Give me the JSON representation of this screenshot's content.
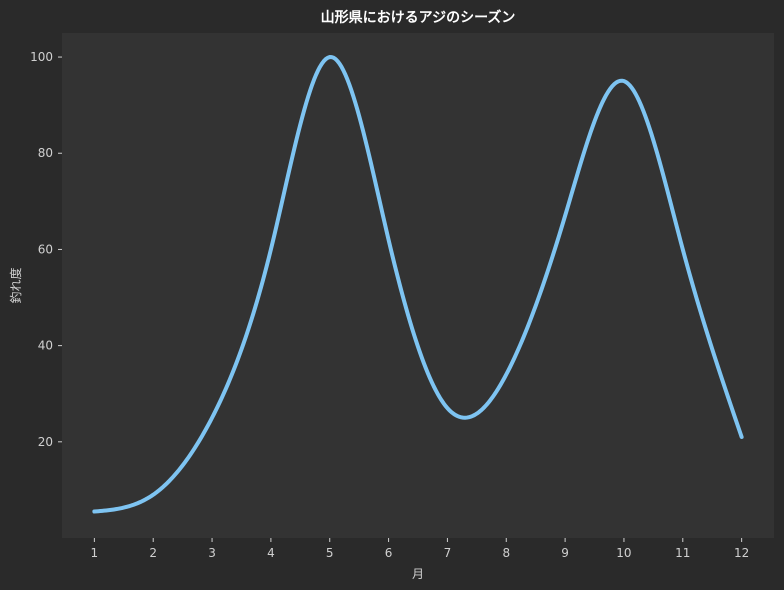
{
  "chart_data": {
    "type": "line",
    "title": "山形県におけるアジのシーズン",
    "xlabel": "月",
    "ylabel": "釣れ度",
    "xlim": [
      0.45,
      12.55
    ],
    "ylim": [
      0,
      105
    ],
    "xticks": [
      1,
      2,
      3,
      4,
      5,
      6,
      7,
      8,
      9,
      10,
      11,
      12
    ],
    "yticks": [
      20,
      40,
      60,
      80,
      100
    ],
    "grid": false,
    "series": [
      {
        "x": [
          1,
          2,
          3,
          4,
          5,
          6,
          7,
          8,
          9,
          10,
          11,
          12
        ],
        "values": [
          5.5,
          9,
          25,
          60,
          100,
          62,
          27,
          34,
          67,
          95,
          60,
          21
        ]
      }
    ],
    "colors": {
      "background": "#2a2a2a",
      "plot_background": "#333333",
      "line": "#7ec4f2",
      "text": "#d0d0d0",
      "title": "#ffffff"
    }
  }
}
